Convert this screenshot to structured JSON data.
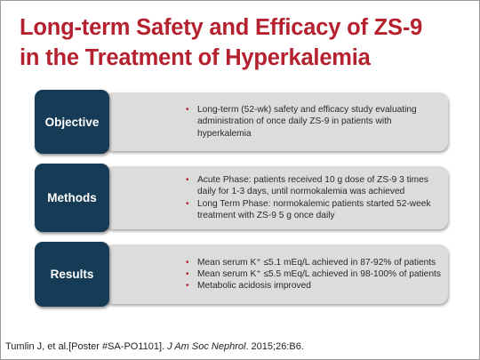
{
  "title": {
    "line1": "Long-term Safety and Efficacy of ZS-9",
    "line2": "in the Treatment of Hyperkalemia"
  },
  "sections": [
    {
      "label": "Objective",
      "bullets": [
        "Long-term (52-wk) safety and efficacy study evaluating administration of once daily ZS-9 in patients with hyperkalemia"
      ]
    },
    {
      "label": "Methods",
      "bullets": [
        "Acute Phase: patients received 10 g dose of ZS-9 3 times daily for 1-3 days, until normokalemia was achieved",
        "Long Term Phase: normokalemic patients started 52-week treatment with ZS-9 5 g once daily"
      ]
    },
    {
      "label": "Results",
      "bullets": [
        "Mean serum K⁺ ≤5.1 mEq/L achieved in 87-92% of patients",
        "Mean serum K⁺ ≤5.5 mEq/L achieved in 98-100% of patients",
        "Metabolic acidosis improved"
      ]
    }
  ],
  "footer": {
    "authors": "Tumlin J, et al.[Poster #SA-PO1101]. ",
    "journal": "J Am Soc Nephrol",
    "citation": ". 2015;26:B6."
  },
  "bullet_glyph": "•",
  "colors": {
    "title": "#b5212e",
    "label_box": "#163b56",
    "panel": "#dcdcdc",
    "bullet": "#b5212e"
  }
}
